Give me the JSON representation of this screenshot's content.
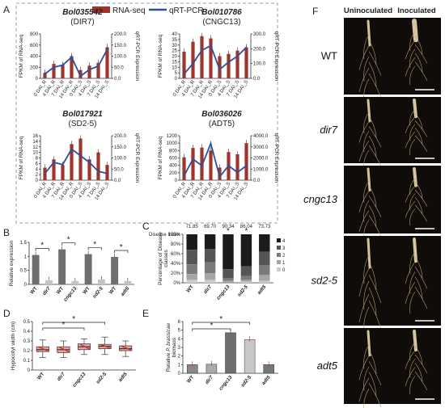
{
  "panels": {
    "A": "A",
    "B": "B",
    "C": "C",
    "D": "D",
    "E": "E",
    "F": "F"
  },
  "legend_a": {
    "bar": "RNA-seq",
    "line": "qRT-PCR",
    "bar_color": "#a0342a",
    "line_color": "#2f4f9a"
  },
  "time_labels": [
    "0 DAI_R",
    "4 DAI_R",
    "7 DAI_R",
    "14 DAI_R",
    "0 DAI_S",
    "4 DAI_S",
    "7 DAI_S",
    "14 DAI_S"
  ],
  "axis_a": {
    "left": "FPKM of RNA-seq",
    "right": "qRT-PCR Expression"
  },
  "chart_data": [
    {
      "type": "bar",
      "id": "A1",
      "gene": "Bol035542",
      "subtitle": "(DIR7)",
      "bar_values": [
        100,
        260,
        240,
        400,
        150,
        230,
        280,
        560
      ],
      "line_values": [
        20,
        50,
        60,
        95,
        10,
        40,
        55,
        130
      ],
      "ylim_left": [
        0,
        800
      ],
      "yticks_left": [
        "0",
        "200",
        "400",
        "600",
        "800"
      ],
      "ylim_right": [
        0,
        200
      ],
      "yticks_right": [
        "0.0",
        "50.0",
        "100.0",
        "150.0",
        "200.0"
      ]
    },
    {
      "type": "bar",
      "id": "A2",
      "gene": "Bol010786",
      "subtitle": "(CNGC13)",
      "bar_values": [
        24,
        33,
        38,
        36,
        20,
        22,
        25,
        28
      ],
      "line_values": [
        30,
        100,
        190,
        220,
        60,
        110,
        150,
        210
      ],
      "ylim_left": [
        0,
        40
      ],
      "yticks_left": [
        "0",
        "5",
        "10",
        "15",
        "20",
        "25",
        "30",
        "35",
        "40"
      ],
      "ylim_right": [
        0,
        300
      ],
      "yticks_right": [
        "0.0",
        "100.0",
        "200.0",
        "300.0"
      ]
    },
    {
      "type": "bar",
      "id": "A3",
      "gene": "Bol017921",
      "subtitle": "(SD2-5)",
      "bar_values": [
        4.5,
        7.5,
        5.5,
        13,
        15,
        7.5,
        10,
        5.5
      ],
      "line_values": [
        30,
        80,
        70,
        140,
        110,
        80,
        40,
        30
      ],
      "ylim_left": [
        0,
        16
      ],
      "yticks_left": [
        "0",
        "2",
        "4",
        "6",
        "8",
        "10",
        "12",
        "14",
        "16"
      ],
      "ylim_right": [
        0,
        200
      ],
      "yticks_right": [
        "0.0",
        "50.0",
        "100.0",
        "150.0",
        "200.0"
      ]
    },
    {
      "type": "bar",
      "id": "A4",
      "gene": "Bol036026",
      "subtitle": "(ADT5)",
      "bar_values": [
        620,
        870,
        880,
        800,
        340,
        760,
        700,
        1000
      ],
      "line_values": [
        400,
        1900,
        1300,
        3300,
        300,
        1300,
        700,
        1300
      ],
      "ylim_left": [
        0,
        1200
      ],
      "yticks_left": [
        "0",
        "200",
        "400",
        "600",
        "800",
        "1000",
        "1200"
      ],
      "ylim_right": [
        0,
        4000
      ],
      "yticks_right": [
        "0.0",
        "1000.0",
        "2000.0",
        "3000.0",
        "4000.0"
      ]
    },
    {
      "type": "bar",
      "id": "B",
      "ylabel": "Relative expression",
      "categories": [
        "WT",
        "dir7",
        "WT",
        "cngc13",
        "WT",
        "sd2-5",
        "WT",
        "adt5"
      ],
      "values": [
        1.05,
        0.15,
        1.25,
        0.12,
        1.08,
        0.18,
        0.98,
        0.12
      ],
      "ylim": [
        0,
        1.5
      ],
      "yticks": [
        "0",
        "0.5",
        "1",
        "1.5"
      ]
    },
    {
      "type": "bar",
      "id": "C",
      "ylabel": "Percentage of Disease classes",
      "title": "Disease Index",
      "categories": [
        "WT",
        "dir7",
        "cngc13",
        "sd2-5",
        "adt5"
      ],
      "disease_index": [
        "71.85",
        "69.70",
        "90.34",
        "86.04",
        "73.73"
      ],
      "stars": [
        "",
        "",
        "*",
        "*",
        ""
      ],
      "classes": [
        "4",
        "3",
        "2",
        "1",
        "0"
      ],
      "class_colors": [
        "#1b1b1b",
        "#555555",
        "#7a7a7a",
        "#a5a5a5",
        "#cccccc"
      ],
      "stacks": [
        [
          32,
          30,
          20,
          12,
          6
        ],
        [
          30,
          28,
          22,
          14,
          6
        ],
        [
          72,
          18,
          6,
          4,
          0
        ],
        [
          66,
          20,
          8,
          4,
          2
        ],
        [
          36,
          28,
          20,
          12,
          4
        ]
      ],
      "yticks": [
        "0%",
        "20%",
        "40%",
        "60%",
        "80%",
        "100%"
      ]
    },
    {
      "type": "box",
      "id": "D",
      "ylabel": "Hypocotyl width (cm)",
      "categories": [
        "WT",
        "dir7",
        "cngc13",
        "sd2-5",
        "adt5"
      ],
      "boxes": [
        {
          "min": 0.13,
          "q1": 0.19,
          "med": 0.21,
          "q3": 0.24,
          "max": 0.31
        },
        {
          "min": 0.13,
          "q1": 0.18,
          "med": 0.21,
          "q3": 0.24,
          "max": 0.3
        },
        {
          "min": 0.16,
          "q1": 0.21,
          "med": 0.24,
          "q3": 0.27,
          "max": 0.32
        },
        {
          "min": 0.16,
          "q1": 0.22,
          "med": 0.245,
          "q3": 0.265,
          "max": 0.34
        },
        {
          "min": 0.14,
          "q1": 0.2,
          "med": 0.22,
          "q3": 0.25,
          "max": 0.3
        }
      ],
      "ylim": [
        0,
        0.5
      ],
      "yticks": [
        "0",
        "0.1",
        "0.2",
        "0.3",
        "0.4",
        "0.5"
      ]
    },
    {
      "type": "bar",
      "id": "E",
      "ylabel_1": "Relative",
      "ylabel_2": "P. brassicae",
      "ylabel_3": "biomass",
      "categories": [
        "WT",
        "dir7",
        "cngc13",
        "sd2-5",
        "adt5"
      ],
      "values": [
        1.0,
        1.05,
        4.7,
        3.9,
        1.0
      ],
      "colors": [
        "#888888",
        "#aaaaaa",
        "#6e6e6e",
        "#c8c8c8",
        "#777777"
      ],
      "ylim": [
        0,
        6
      ],
      "yticks": [
        "0",
        "1",
        "2",
        "3",
        "4",
        "5",
        "6"
      ]
    }
  ],
  "photos": {
    "header_left": "Uninoculated",
    "header_right": "Inoculated",
    "rows": [
      "WT",
      "dir7",
      "cngc13",
      "sd2-5",
      "adt5"
    ]
  },
  "sig": "*"
}
